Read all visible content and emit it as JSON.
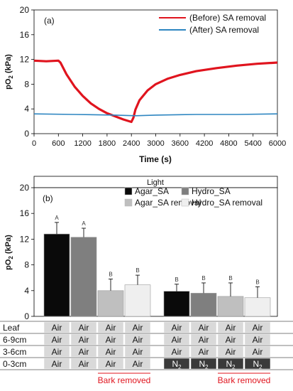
{
  "chart_data": [
    {
      "type": "line",
      "panel_label": "(a)",
      "xlabel": "Time (s)",
      "ylabel_main": "pO",
      "ylabel_sub": "2",
      "ylabel_unit": " (kPa)",
      "xlim": [
        0,
        6000
      ],
      "ylim": [
        0,
        20
      ],
      "xticks": [
        0,
        600,
        1200,
        1800,
        2400,
        3000,
        3600,
        4200,
        4800,
        5400,
        6000
      ],
      "yticks": [
        0,
        4,
        8,
        12,
        16,
        20
      ],
      "grid": false,
      "legend_position": "top-right",
      "series": [
        {
          "name": "(Before) SA removal",
          "color": "#e0141e",
          "points": [
            [
              0,
              11.8
            ],
            [
              300,
              11.7
            ],
            [
              600,
              11.8
            ],
            [
              650,
              11.5
            ],
            [
              800,
              9.6
            ],
            [
              1000,
              7.6
            ],
            [
              1200,
              6.1
            ],
            [
              1400,
              4.9
            ],
            [
              1600,
              4.0
            ],
            [
              1800,
              3.3
            ],
            [
              2000,
              2.8
            ],
            [
              2200,
              2.3
            ],
            [
              2400,
              1.9
            ],
            [
              2450,
              2.6
            ],
            [
              2500,
              3.9
            ],
            [
              2600,
              5.4
            ],
            [
              2800,
              7.0
            ],
            [
              3000,
              8.0
            ],
            [
              3300,
              8.9
            ],
            [
              3600,
              9.5
            ],
            [
              4000,
              10.1
            ],
            [
              4500,
              10.6
            ],
            [
              5000,
              11.0
            ],
            [
              5500,
              11.3
            ],
            [
              6000,
              11.5
            ]
          ]
        },
        {
          "name": "(After)   SA removal",
          "color": "#2e86c1",
          "points": [
            [
              0,
              3.2
            ],
            [
              1000,
              3.1
            ],
            [
              2000,
              3.0
            ],
            [
              2500,
              2.9
            ],
            [
              3000,
              3.0
            ],
            [
              4000,
              3.1
            ],
            [
              5000,
              3.1
            ],
            [
              6000,
              3.2
            ]
          ]
        }
      ]
    },
    {
      "type": "bar",
      "header": "Light",
      "panel_label": "(b)",
      "ylabel_main": "pO",
      "ylabel_sub": "2",
      "ylabel_unit": " (kPa)",
      "ylim": [
        0,
        20
      ],
      "yticks": [
        0,
        4,
        8,
        12,
        16,
        20
      ],
      "grid": false,
      "legend_position": "top",
      "series": [
        {
          "name": "Agar_SA",
          "color": "#0a0a0a"
        },
        {
          "name": "Hydro_SA",
          "color": "#7f7f7f"
        },
        {
          "name": "Agar_SA removal",
          "color": "#bfbfbf"
        },
        {
          "name": "Hydro_SA removal",
          "color": "#efefef"
        }
      ],
      "bars": [
        {
          "series": 0,
          "value": 12.8,
          "error": 1.8,
          "letter": "A"
        },
        {
          "series": 1,
          "value": 12.3,
          "error": 1.4,
          "letter": "A"
        },
        {
          "series": 2,
          "value": 4.0,
          "error": 1.8,
          "letter": "B"
        },
        {
          "series": 3,
          "value": 4.9,
          "error": 1.5,
          "letter": "B"
        },
        {
          "series": 0,
          "value": 3.9,
          "error": 1.1,
          "letter": "B"
        },
        {
          "series": 1,
          "value": 3.6,
          "error": 1.6,
          "letter": "B"
        },
        {
          "series": 2,
          "value": 3.1,
          "error": 2.1,
          "letter": "B"
        },
        {
          "series": 3,
          "value": 2.9,
          "error": 1.7,
          "letter": "B"
        }
      ],
      "treatment_table": {
        "rows": [
          {
            "label": "Leaf",
            "cells": [
              "Air",
              "Air",
              "Air",
              "Air",
              "Air",
              "Air",
              "Air",
              "Air"
            ]
          },
          {
            "label": "6-9cm",
            "cells": [
              "Air",
              "Air",
              "Air",
              "Air",
              "Air",
              "Air",
              "Air",
              "Air"
            ]
          },
          {
            "label": "3-6cm",
            "cells": [
              "Air",
              "Air",
              "Air",
              "Air",
              "Air",
              "Air",
              "Air",
              "Air"
            ]
          },
          {
            "label": "0-3cm",
            "cells": [
              "Air",
              "Air",
              "Air",
              "Air",
              "N",
              "N",
              "N",
              "N"
            ],
            "subscripts": [
              "",
              "",
              "",
              "",
              "2",
              "2",
              "2",
              "2"
            ],
            "dark": [
              false,
              false,
              false,
              false,
              true,
              true,
              true,
              true
            ]
          }
        ],
        "footnotes": [
          {
            "text": "Bark removed",
            "group": 0
          },
          {
            "text": "Bark removed",
            "group": 1
          }
        ]
      }
    }
  ]
}
